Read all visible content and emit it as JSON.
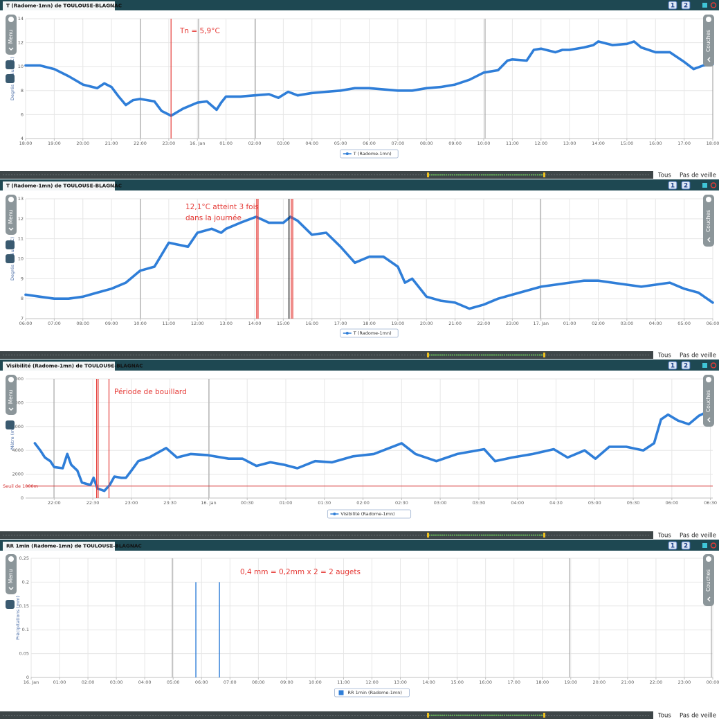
{
  "ui": {
    "buttons": [
      "1",
      "2"
    ],
    "menu": "Menu",
    "layers": "Couches",
    "range": "Tous",
    "sleep": "Pas de veille"
  },
  "chart_data": [
    {
      "type": "line",
      "title": "T (Radome-1mn) de TOULOUSE-BLAGNAC",
      "y_label": "Degrés Celsius (°C)",
      "grid": true,
      "xlim": [
        18,
        42
      ],
      "xticks": [
        {
          "value": 18,
          "label": "18:00"
        },
        {
          "value": 19,
          "label": "19:00"
        },
        {
          "value": 20,
          "label": "20:00"
        },
        {
          "value": 21,
          "label": "21:00"
        },
        {
          "value": 22,
          "label": "22:00"
        },
        {
          "value": 23,
          "label": "23:00"
        },
        {
          "value": 24,
          "label": "16. Jan"
        },
        {
          "value": 25,
          "label": "01:00"
        },
        {
          "value": 26,
          "label": "02:00"
        },
        {
          "value": 27,
          "label": "03:00"
        },
        {
          "value": 28,
          "label": "04:00"
        },
        {
          "value": 29,
          "label": "05:00"
        },
        {
          "value": 30,
          "label": "06:00"
        },
        {
          "value": 31,
          "label": "07:00"
        },
        {
          "value": 32,
          "label": "08:00"
        },
        {
          "value": 33,
          "label": "09:00"
        },
        {
          "value": 34,
          "label": "10:00"
        },
        {
          "value": 35,
          "label": "11:00"
        },
        {
          "value": 36,
          "label": "12:00"
        },
        {
          "value": 37,
          "label": "13:00"
        },
        {
          "value": 38,
          "label": "14:00"
        },
        {
          "value": 39,
          "label": "15:00"
        },
        {
          "value": 40,
          "label": "16:00"
        },
        {
          "value": 41,
          "label": "17:00"
        },
        {
          "value": 42,
          "label": "18:00"
        }
      ],
      "ylim": [
        4,
        14
      ],
      "yticks": [
        4,
        6,
        8,
        10,
        12,
        14
      ],
      "series": [
        {
          "name": "T (Radome-1mn)",
          "color": "#2f7ed8",
          "x": [
            18,
            18.5,
            19,
            19.5,
            20,
            20.5,
            20.75,
            21,
            21.25,
            21.5,
            21.75,
            22,
            22.5,
            22.75,
            23,
            23.08,
            23.5,
            24,
            24.33,
            24.67,
            24.83,
            25,
            25.5,
            26,
            26.5,
            26.83,
            27.17,
            27.5,
            28,
            28.5,
            29,
            29.5,
            30,
            30.5,
            31,
            31.5,
            32,
            32.5,
            33,
            33.5,
            34,
            34.5,
            34.83,
            35,
            35.5,
            35.75,
            36,
            36.5,
            36.75,
            37,
            37.5,
            37.83,
            38,
            38.5,
            39,
            39.25,
            39.5,
            40,
            40.5,
            41,
            41.33,
            41.67,
            42
          ],
          "values": [
            10.1,
            10.1,
            9.8,
            9.2,
            8.5,
            8.2,
            8.6,
            8.3,
            7.5,
            6.8,
            7.2,
            7.3,
            7.1,
            6.3,
            6.0,
            5.9,
            6.5,
            7.0,
            7.1,
            6.4,
            7.0,
            7.5,
            7.5,
            7.6,
            7.7,
            7.4,
            7.9,
            7.6,
            7.8,
            7.9,
            8.0,
            8.2,
            8.2,
            8.1,
            8.0,
            8.0,
            8.2,
            8.3,
            8.5,
            8.9,
            9.5,
            9.7,
            10.5,
            10.6,
            10.5,
            11.4,
            11.5,
            11.2,
            11.4,
            11.4,
            11.6,
            11.8,
            12.1,
            11.8,
            11.9,
            12.1,
            11.6,
            11.2,
            11.2,
            10.4,
            9.8,
            10.1,
            10.2
          ]
        }
      ],
      "markers": [
        {
          "x": 23.08,
          "color": "#e53935"
        }
      ],
      "annotation": [
        "Tn = 5,9°C"
      ]
    },
    {
      "type": "line",
      "title": "T (Radome-1mn) de TOULOUSE-BLAGNAC",
      "y_label": "Degrés Celsius (°C)",
      "grid": true,
      "xlim": [
        6,
        30
      ],
      "xticks": [
        {
          "value": 6,
          "label": "06:00"
        },
        {
          "value": 7,
          "label": "07:00"
        },
        {
          "value": 8,
          "label": "08:00"
        },
        {
          "value": 9,
          "label": "09:00"
        },
        {
          "value": 10,
          "label": "10:00"
        },
        {
          "value": 11,
          "label": "11:00"
        },
        {
          "value": 12,
          "label": "12:00"
        },
        {
          "value": 13,
          "label": "13:00"
        },
        {
          "value": 14,
          "label": "14:00"
        },
        {
          "value": 15,
          "label": "15:00"
        },
        {
          "value": 16,
          "label": "16:00"
        },
        {
          "value": 17,
          "label": "17:00"
        },
        {
          "value": 18,
          "label": "18:00"
        },
        {
          "value": 19,
          "label": "19:00"
        },
        {
          "value": 20,
          "label": "20:00"
        },
        {
          "value": 21,
          "label": "21:00"
        },
        {
          "value": 22,
          "label": "22:00"
        },
        {
          "value": 23,
          "label": "23:00"
        },
        {
          "value": 24,
          "label": "17. Jan"
        },
        {
          "value": 25,
          "label": "01:00"
        },
        {
          "value": 26,
          "label": "02:00"
        },
        {
          "value": 27,
          "label": "03:00"
        },
        {
          "value": 28,
          "label": "04:00"
        },
        {
          "value": 29,
          "label": "05:00"
        },
        {
          "value": 30,
          "label": "06:00"
        }
      ],
      "ylim": [
        7,
        13
      ],
      "yticks": [
        7,
        8,
        9,
        10,
        11,
        12,
        13
      ],
      "series": [
        {
          "name": "T (Radome-1mn)",
          "color": "#2f7ed8",
          "x": [
            6,
            6.5,
            7,
            7.5,
            8,
            8.5,
            9,
            9.5,
            10,
            10.5,
            11,
            11.33,
            11.67,
            12,
            12.5,
            12.83,
            13,
            13.5,
            14.05,
            14.5,
            15,
            15.25,
            15.5,
            16,
            16.5,
            17,
            17.5,
            18,
            18.5,
            19,
            19.25,
            19.5,
            20,
            20.5,
            21,
            21.5,
            22,
            22.5,
            23,
            23.5,
            24,
            24.5,
            25,
            25.5,
            26,
            26.5,
            27,
            27.5,
            28,
            28.5,
            29,
            29.5,
            30
          ],
          "values": [
            8.2,
            8.1,
            8.0,
            8.0,
            8.1,
            8.3,
            8.5,
            8.8,
            9.4,
            9.6,
            10.8,
            10.7,
            10.6,
            11.3,
            11.5,
            11.3,
            11.5,
            11.8,
            12.1,
            11.8,
            11.8,
            12.1,
            11.9,
            11.2,
            11.3,
            10.6,
            9.8,
            10.1,
            10.1,
            9.6,
            8.8,
            9.0,
            8.1,
            7.9,
            7.8,
            7.5,
            7.7,
            8.0,
            8.2,
            8.4,
            8.6,
            8.7,
            8.8,
            8.9,
            8.9,
            8.8,
            8.7,
            8.6,
            8.7,
            8.8,
            8.5,
            8.3,
            7.8
          ]
        }
      ],
      "markers": [
        {
          "x": 14.07,
          "color": "#e53935"
        },
        {
          "x": 14.12,
          "color": "#e53935"
        },
        {
          "x": 15.2,
          "color": "#000000"
        },
        {
          "x": 15.28,
          "color": "#e53935"
        },
        {
          "x": 15.33,
          "color": "#e53935"
        }
      ],
      "annotation": [
        "12,1°C atteint 3 fois",
        "dans la journée"
      ]
    },
    {
      "type": "line",
      "title": "Visibilité (Radome-1mn) de TOULOUSE-BLAGNAC",
      "y_label": "Mètre (m)",
      "grid": true,
      "xlim": [
        21.63,
        30.53
      ],
      "xticks": [
        {
          "value": 22,
          "label": "22:00"
        },
        {
          "value": 22.5,
          "label": "22:30"
        },
        {
          "value": 23,
          "label": "23:00"
        },
        {
          "value": 23.5,
          "label": "23:30"
        },
        {
          "value": 24,
          "label": "16. Jan"
        },
        {
          "value": 24.5,
          "label": "00:30"
        },
        {
          "value": 25,
          "label": "01:00"
        },
        {
          "value": 25.5,
          "label": "01:30"
        },
        {
          "value": 26,
          "label": "02:00"
        },
        {
          "value": 26.5,
          "label": "02:30"
        },
        {
          "value": 27,
          "label": "03:00"
        },
        {
          "value": 27.5,
          "label": "03:30"
        },
        {
          "value": 28,
          "label": "04:00"
        },
        {
          "value": 28.5,
          "label": "04:30"
        },
        {
          "value": 29,
          "label": "05:00"
        },
        {
          "value": 29.5,
          "label": "05:30"
        },
        {
          "value": 30,
          "label": "06:00"
        },
        {
          "value": 30.5,
          "label": "06:30"
        }
      ],
      "ylim": [
        0,
        10000
      ],
      "yticks": [
        0,
        2000,
        4000,
        6000,
        8000,
        10000
      ],
      "series": [
        {
          "name": "Visibilité (Radome-1mn)",
          "color": "#2f7ed8",
          "x": [
            21.75,
            21.82,
            21.88,
            21.95,
            22.0,
            22.11,
            22.17,
            22.22,
            22.3,
            22.36,
            22.47,
            22.51,
            22.56,
            22.65,
            22.72,
            22.78,
            22.87,
            22.93,
            23.0,
            23.09,
            23.23,
            23.45,
            23.59,
            23.77,
            23.99,
            24.26,
            24.44,
            24.62,
            24.8,
            24.97,
            25.15,
            25.38,
            25.6,
            25.87,
            26.14,
            26.5,
            26.68,
            26.95,
            27.22,
            27.57,
            27.71,
            27.93,
            28.2,
            28.47,
            28.65,
            28.87,
            29.01,
            29.19,
            29.41,
            29.63,
            29.77,
            29.86,
            29.95,
            30.08,
            30.22,
            30.35,
            30.51
          ],
          "values": [
            4600,
            4000,
            3400,
            3100,
            2600,
            2500,
            3700,
            2800,
            2300,
            1300,
            1100,
            1700,
            800,
            600,
            1100,
            1800,
            1700,
            1700,
            2300,
            3100,
            3400,
            4200,
            3400,
            3700,
            3600,
            3300,
            3300,
            2700,
            3000,
            2800,
            2500,
            3100,
            3000,
            3500,
            3700,
            4600,
            3700,
            3100,
            3700,
            4100,
            3100,
            3400,
            3700,
            4100,
            3400,
            4000,
            3300,
            4300,
            4300,
            4000,
            4600,
            6600,
            7000,
            6500,
            6200,
            6900,
            7400
          ]
        }
      ],
      "threshold": {
        "value": 1000,
        "label": "Seuil de 1000m",
        "color": "#d32f2f"
      },
      "markers": [
        {
          "x": 22.55,
          "color": "#e53935"
        },
        {
          "x": 22.57,
          "color": "#e53935"
        },
        {
          "x": 22.71,
          "color": "#e53935"
        }
      ],
      "annotation": [
        "Période de bouillard"
      ]
    },
    {
      "type": "bar",
      "title": "RR 1min (Radome-1mn) de TOULOUSE-BLAGNAC",
      "y_label": "Précipitations (mm)",
      "grid": true,
      "xlim": [
        0,
        24
      ],
      "xticks": [
        {
          "value": 0,
          "label": "16. Jan"
        },
        {
          "value": 1,
          "label": "01:00"
        },
        {
          "value": 2,
          "label": "02:00"
        },
        {
          "value": 3,
          "label": "03:00"
        },
        {
          "value": 4,
          "label": "04:00"
        },
        {
          "value": 5,
          "label": "05:00"
        },
        {
          "value": 6,
          "label": "06:00"
        },
        {
          "value": 7,
          "label": "07:00"
        },
        {
          "value": 8,
          "label": "08:00"
        },
        {
          "value": 9,
          "label": "09:00"
        },
        {
          "value": 10,
          "label": "10:00"
        },
        {
          "value": 11,
          "label": "11:00"
        },
        {
          "value": 12,
          "label": "12:00"
        },
        {
          "value": 13,
          "label": "13:00"
        },
        {
          "value": 14,
          "label": "14:00"
        },
        {
          "value": 15,
          "label": "15:00"
        },
        {
          "value": 16,
          "label": "16:00"
        },
        {
          "value": 17,
          "label": "17:00"
        },
        {
          "value": 18,
          "label": "18:00"
        },
        {
          "value": 19,
          "label": "19:00"
        },
        {
          "value": 20,
          "label": "20:00"
        },
        {
          "value": 21,
          "label": "21:00"
        },
        {
          "value": 22,
          "label": "22:00"
        },
        {
          "value": 23,
          "label": "23:00"
        },
        {
          "value": 24,
          "label": "00:00"
        }
      ],
      "ylim": [
        0,
        0.25
      ],
      "yticks": [
        0,
        0.05,
        0.1,
        0.15,
        0.2,
        0.25
      ],
      "series": [
        {
          "name": "RR 1min (Radome-1mn)",
          "color": "#2f7ed8",
          "x": [
            5.8,
            6.63
          ],
          "values": [
            0.2,
            0.2
          ]
        }
      ],
      "markers": [],
      "annotation": [
        "0,4 mm = 0,2mm x 2 = 2 augets"
      ]
    }
  ]
}
